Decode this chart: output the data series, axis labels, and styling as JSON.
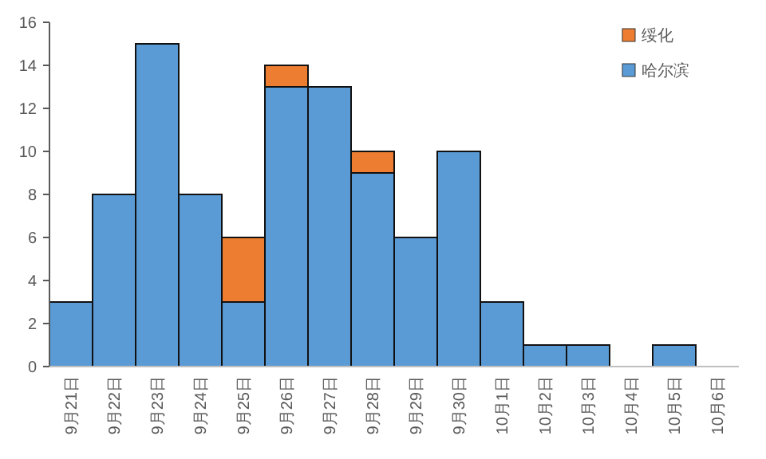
{
  "chart_data": {
    "type": "bar",
    "stacked": true,
    "categories": [
      "9月21日",
      "9月22日",
      "9月23日",
      "9月24日",
      "9月25日",
      "9月26日",
      "9月27日",
      "9月28日",
      "9月29日",
      "9月30日",
      "10月1日",
      "10月2日",
      "10月3日",
      "10月4日",
      "10月5日",
      "10月6日"
    ],
    "series": [
      {
        "name": "哈尔滨",
        "color": "#5b9bd5",
        "values": [
          3,
          8,
          15,
          8,
          3,
          13,
          13,
          9,
          6,
          10,
          3,
          1,
          1,
          0,
          1,
          0
        ]
      },
      {
        "name": "绥化",
        "color": "#ed7d31",
        "values": [
          0,
          0,
          0,
          0,
          3,
          1,
          0,
          1,
          0,
          0,
          0,
          0,
          0,
          0,
          0,
          0
        ]
      }
    ],
    "ylim": [
      0,
      16
    ],
    "yticks": [
      0,
      2,
      4,
      6,
      8,
      10,
      12,
      14,
      16
    ],
    "grid": false,
    "legend": "top right"
  }
}
